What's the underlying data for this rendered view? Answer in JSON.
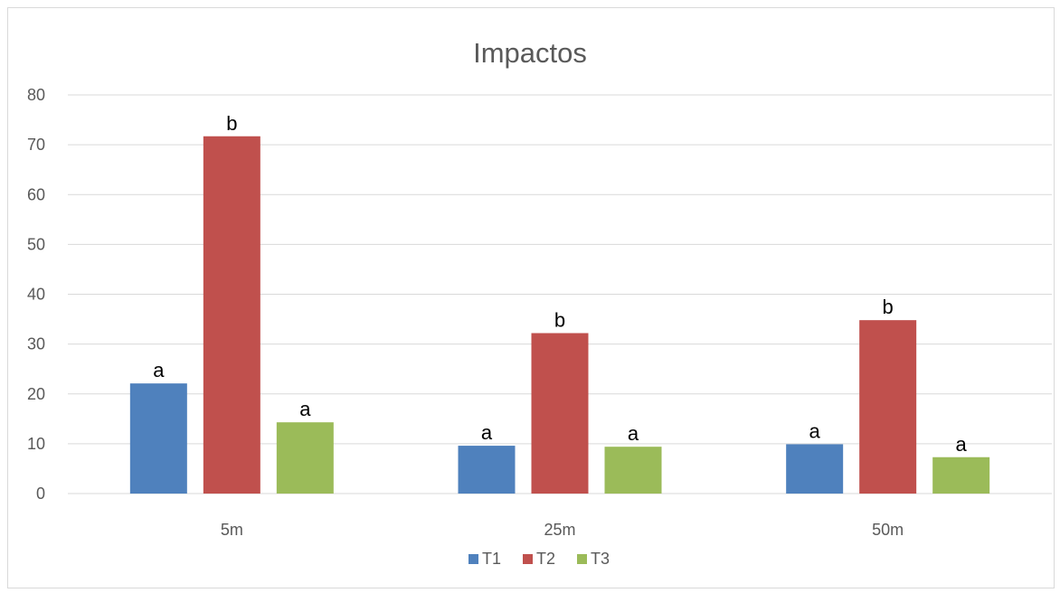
{
  "chart_data": {
    "type": "bar",
    "title": "Impactos",
    "xlabel": "",
    "ylabel": "",
    "categories": [
      "5m",
      "25m",
      "50m"
    ],
    "ylim": [
      0,
      80
    ],
    "yticks": [
      0,
      10,
      20,
      30,
      40,
      50,
      60,
      70,
      80
    ],
    "grid": true,
    "legend_position": "bottom",
    "series": [
      {
        "name": "T1",
        "color": "#4f81bd",
        "values": [
          22.1,
          9.6,
          9.9
        ],
        "labels": [
          "a",
          "a",
          "a"
        ]
      },
      {
        "name": "T2",
        "color": "#c0504d",
        "values": [
          71.7,
          32.2,
          34.8
        ],
        "labels": [
          "b",
          "b",
          "b"
        ]
      },
      {
        "name": "T3",
        "color": "#9bbb59",
        "values": [
          14.3,
          9.4,
          7.3
        ],
        "labels": [
          "a",
          "a",
          "a"
        ]
      }
    ]
  }
}
